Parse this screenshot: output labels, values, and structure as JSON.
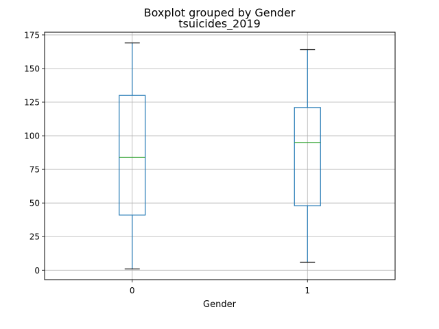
{
  "chart_data": {
    "type": "box",
    "title": "Boxplot grouped by Gender",
    "subtitle": "tsuicides_2019",
    "xlabel": "Gender",
    "ylabel": "",
    "ylim": [
      -7,
      177
    ],
    "yticks": [
      0,
      25,
      50,
      75,
      100,
      125,
      150,
      175
    ],
    "ytick_labels": [
      "0",
      "25",
      "50",
      "75",
      "100",
      "125",
      "150",
      "175"
    ],
    "categories": [
      "0",
      "1"
    ],
    "boxes": [
      {
        "category": "0",
        "whisker_low": 1,
        "q1": 41,
        "median": 84,
        "q3": 130,
        "whisker_high": 169
      },
      {
        "category": "1",
        "whisker_low": 6,
        "q1": 48,
        "median": 95,
        "q3": 121,
        "whisker_high": 164
      }
    ],
    "grid": true,
    "colors": {
      "box": "#1f77b4",
      "median": "#2ca02c",
      "whisker_cap": "#000000",
      "grid": "#b0b0b0"
    }
  }
}
